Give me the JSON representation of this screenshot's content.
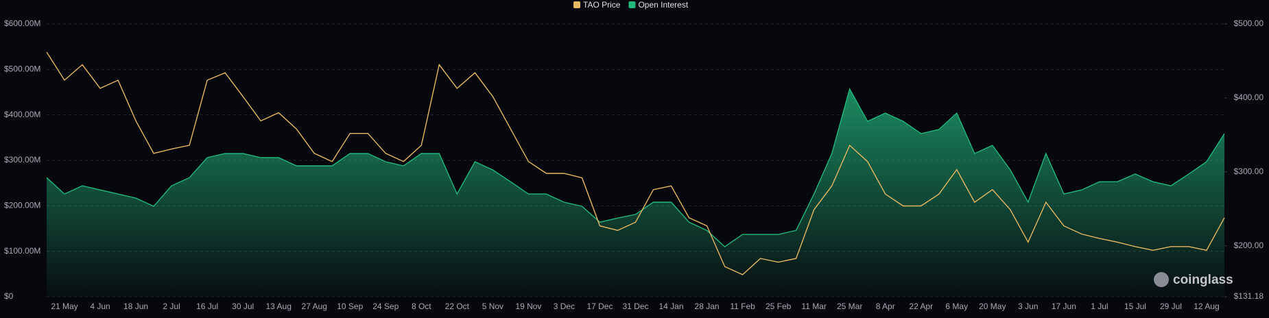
{
  "chart_data": {
    "type": "line",
    "watermark": "coinglass",
    "categories": [
      null,
      "21 May",
      null,
      "4 Jun",
      null,
      "18 Jun",
      null,
      "2 Jul",
      null,
      "16 Jul",
      null,
      "30 Jul",
      null,
      "13 Aug",
      null,
      "27 Aug",
      null,
      "10 Sep",
      null,
      "24 Sep",
      null,
      "8 Oct",
      null,
      "22 Oct",
      null,
      "5 Nov",
      null,
      "19 Nov",
      null,
      "3 Dec",
      null,
      "17 Dec",
      null,
      "31 Dec",
      null,
      "14 Jan",
      null,
      "28 Jan",
      null,
      "11 Feb",
      null,
      "25 Feb",
      null,
      "11 Mar",
      null,
      "25 Mar",
      null,
      "8 Apr",
      null,
      "22 Apr",
      null,
      "6 May",
      null,
      "20 May",
      null,
      "3 Jun",
      null,
      "17 Jun",
      null,
      "1 Jul",
      null,
      "15 Jul",
      null,
      "29 Jul",
      null,
      "12 Aug",
      null
    ],
    "series": [
      {
        "name": "TAO Price",
        "color": "#e7b863",
        "axis": "y2",
        "values": [
          462,
          424,
          445,
          413,
          424,
          369,
          325,
          331,
          336,
          424,
          434,
          402,
          369,
          380,
          358,
          325,
          314,
          352,
          352,
          325,
          314,
          336,
          445,
          413,
          434,
          402,
          358,
          314,
          298,
          298,
          292,
          227,
          221,
          232,
          276,
          281,
          238,
          227,
          172,
          161,
          183,
          178,
          183,
          249,
          281,
          336,
          314,
          270,
          254,
          254,
          270,
          303,
          259,
          276,
          249,
          205,
          259,
          227,
          216,
          210,
          205,
          199,
          194,
          199,
          199,
          194,
          238
        ]
      },
      {
        "name": "Open Interest",
        "color": "#22b77c",
        "values": [
          262000000,
          226000000,
          244000000,
          235000000,
          226000000,
          217000000,
          199000000,
          244000000,
          262000000,
          306000000,
          315000000,
          315000000,
          306000000,
          306000000,
          288000000,
          288000000,
          288000000,
          315000000,
          315000000,
          297000000,
          288000000,
          315000000,
          315000000,
          226000000,
          297000000,
          279000000,
          253000000,
          226000000,
          226000000,
          208000000,
          199000000,
          164000000,
          173000000,
          181000000,
          208000000,
          208000000,
          164000000,
          146000000,
          110000000,
          137000000,
          137000000,
          137000000,
          146000000,
          226000000,
          315000000,
          457000000,
          386000000,
          404000000,
          386000000,
          359000000,
          368000000,
          404000000,
          315000000,
          333000000,
          279000000,
          208000000,
          315000000,
          226000000,
          235000000,
          253000000,
          253000000,
          270000000,
          253000000,
          244000000,
          270000000,
          297000000,
          359000000
        ]
      }
    ],
    "ylim": [
      0,
      600000000
    ],
    "yticks": [
      {
        "value": 0,
        "label": "$0"
      },
      {
        "value": 100000000,
        "label": "$100.00M"
      },
      {
        "value": 200000000,
        "label": "$200.00M"
      },
      {
        "value": 300000000,
        "label": "$300.00M"
      },
      {
        "value": 400000000,
        "label": "$400.00M"
      },
      {
        "value": 500000000,
        "label": "$500.00M"
      },
      {
        "value": 600000000,
        "label": "$600.00M"
      }
    ],
    "y2lim": [
      131.18,
      500
    ],
    "y2ticks": [
      {
        "value": 131.18,
        "label": "$131.18"
      },
      {
        "value": 200,
        "label": "$200.00"
      },
      {
        "value": 300,
        "label": "$300.00"
      },
      {
        "value": 400,
        "label": "$400.00"
      },
      {
        "value": 500,
        "label": "$500.00"
      }
    ],
    "grid": true,
    "legend": "top"
  }
}
